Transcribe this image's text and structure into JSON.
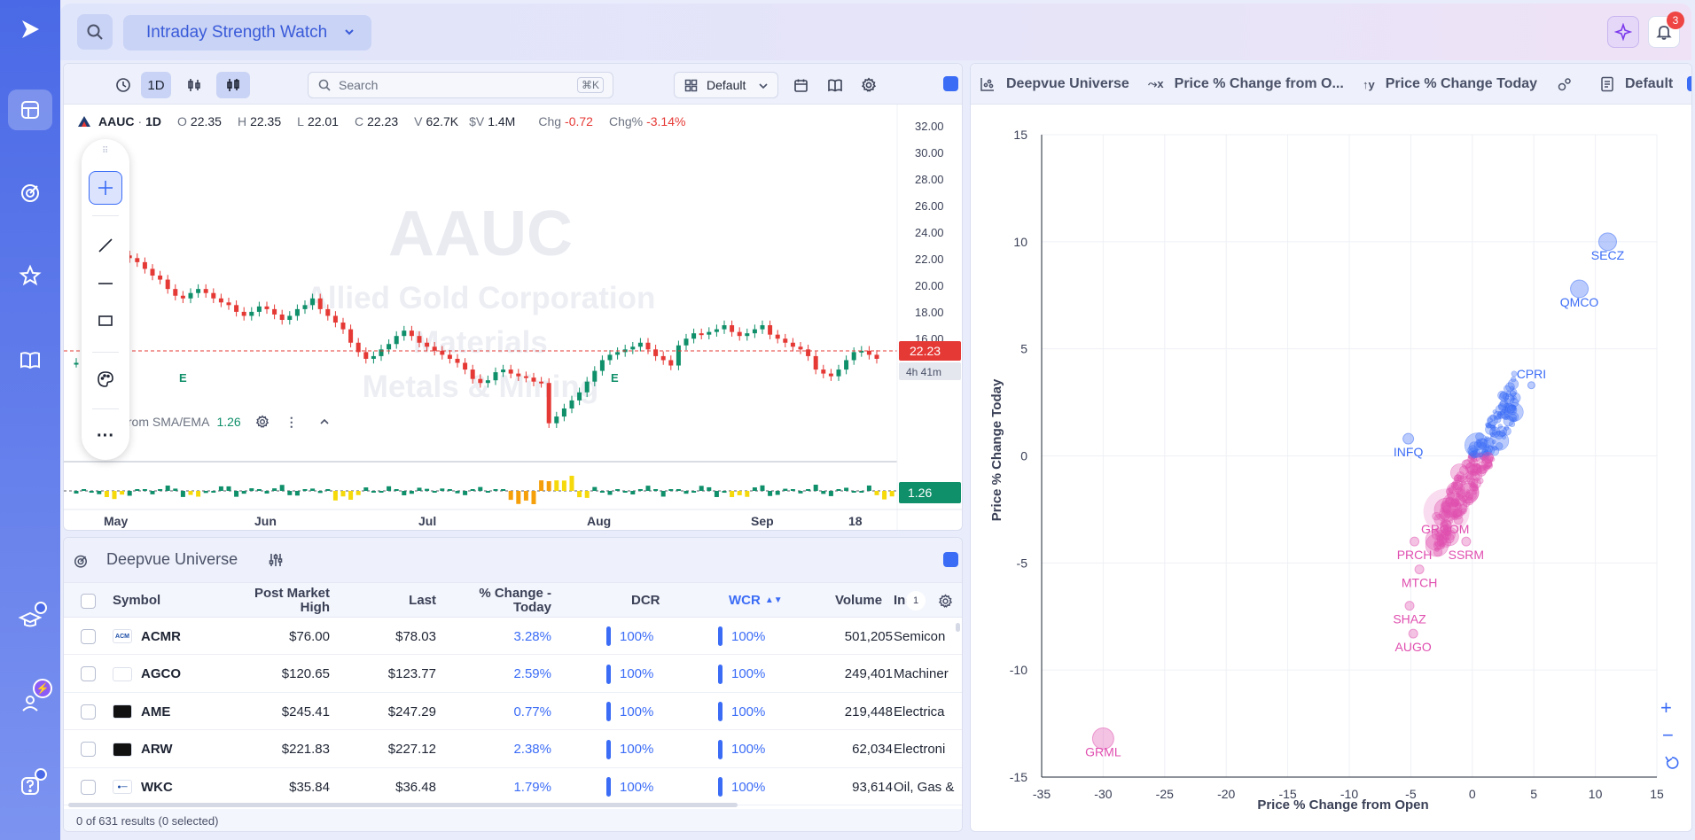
{
  "app": {
    "watchlist_name": "Intraday Strength Watch",
    "notification_count": "3"
  },
  "chart": {
    "timeframe": "1D",
    "search_placeholder": "Search",
    "search_shortcut": "⌘K",
    "layout_label": "Default",
    "symbol": "AAUC",
    "tf_label": "1D",
    "ohlc": {
      "o_label": "O",
      "o": "22.35",
      "h_label": "H",
      "h": "22.35",
      "l_label": "L",
      "l": "22.01",
      "c_label": "C",
      "c": "22.23",
      "v_label": "V",
      "v": "62.7K",
      "dv_label": "$V",
      "dv": "1.4M",
      "chg_label": "Chg",
      "chg": "-0.72",
      "chgp_label": "Chg%",
      "chgp": "-3.14%"
    },
    "watermark": {
      "symbol": "AAUC",
      "name": "Allied Gold Corporation",
      "sector": "Materials",
      "industry": "Metals & Mining"
    },
    "last_price_tag": "22.23",
    "countdown_tag": "4h 41m",
    "price_ticks": [
      "32.00",
      "30.00",
      "28.00",
      "26.00",
      "24.00",
      "22.00",
      "20.00",
      "18.00",
      "16.00"
    ],
    "date_ticks": [
      "May",
      "Jun",
      "Jul",
      "Aug",
      "Sep",
      "18"
    ],
    "earnings_marker": "E",
    "indicator": {
      "name": "RV - % from SMA/EMA",
      "value": "1.26",
      "tag": "1.26"
    }
  },
  "table": {
    "title": "Deepvue Universe",
    "columns": [
      "Symbol",
      "Post Market High",
      "Last",
      "% Change - Today",
      "DCR",
      "WCR",
      "Volume",
      "Ind"
    ],
    "sort_indicator": "WCR",
    "rows": [
      {
        "symbol": "ACMR",
        "pmh": "$76.00",
        "last": "$78.03",
        "chg": "3.28%",
        "dcr": "100%",
        "wcr": "100%",
        "vol": "501,205",
        "ind": "Semicon"
      },
      {
        "symbol": "AGCO",
        "pmh": "$120.65",
        "last": "$123.77",
        "chg": "2.59%",
        "dcr": "100%",
        "wcr": "100%",
        "vol": "249,401",
        "ind": "Machiner"
      },
      {
        "symbol": "AME",
        "pmh": "$245.41",
        "last": "$247.29",
        "chg": "0.77%",
        "dcr": "100%",
        "wcr": "100%",
        "vol": "219,448",
        "ind": "Electrica"
      },
      {
        "symbol": "ARW",
        "pmh": "$221.83",
        "last": "$227.12",
        "chg": "2.38%",
        "dcr": "100%",
        "wcr": "100%",
        "vol": "62,034",
        "ind": "Electroni"
      },
      {
        "symbol": "WKC",
        "pmh": "$35.84",
        "last": "$36.48",
        "chg": "1.79%",
        "dcr": "100%",
        "wcr": "100%",
        "vol": "93,614",
        "ind": "Oil, Gas &"
      }
    ],
    "footer": "0 of 631 results (0 selected)",
    "ind_filter_count": "1"
  },
  "scatter_toolbar": {
    "universe": "Deepvue Universe",
    "x_metric": "Price % Change from O...",
    "y_metric": "Price % Change Today",
    "layout": "Default"
  },
  "chart_data": [
    {
      "type": "scatter",
      "xlabel": "Price % Change from Open",
      "ylabel": "Price % Change Today",
      "xlim": [
        -35,
        15
      ],
      "ylim": [
        -15,
        15
      ],
      "x_ticks": [
        "-35",
        "-30",
        "-25",
        "-20",
        "-15",
        "-10",
        "-5",
        "0",
        "5",
        "10",
        "15"
      ],
      "y_ticks": [
        "15",
        "10",
        "5",
        "0",
        "-5",
        "-10",
        "-15"
      ],
      "grid": true,
      "colors": {
        "positive": "#3b6cf6",
        "negative": "#e04fb0"
      },
      "labeled_points": [
        {
          "label": "SECZ",
          "x": 11,
          "y": 10
        },
        {
          "label": "QMCO",
          "x": 8.7,
          "y": 7.8
        },
        {
          "label": "CPRI",
          "x": 4.8,
          "y": 3.3
        },
        {
          "label": "INFQ",
          "x": -5.2,
          "y": 0.8
        },
        {
          "label": "GROOM",
          "x": -2.2,
          "y": -2.8
        },
        {
          "label": "PRCH",
          "x": -4.7,
          "y": -4
        },
        {
          "label": "SSRM",
          "x": -0.5,
          "y": -4
        },
        {
          "label": "MTCH",
          "x": -4.3,
          "y": -5.3
        },
        {
          "label": "SHAZ",
          "x": -5.1,
          "y": -7
        },
        {
          "label": "AUGO",
          "x": -4.8,
          "y": -8.3
        },
        {
          "label": "GRML",
          "x": -30,
          "y": -13.2
        }
      ]
    }
  ]
}
